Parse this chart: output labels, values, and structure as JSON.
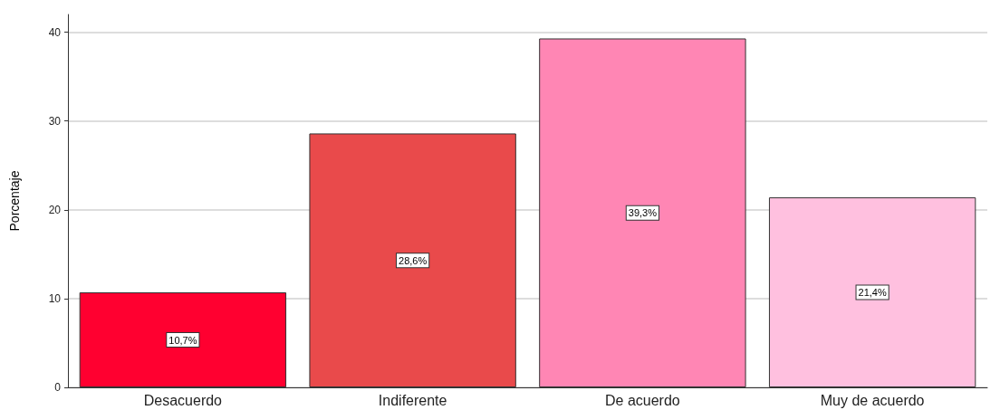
{
  "chart_data": {
    "type": "bar",
    "ylabel": "Porcentaje",
    "categories": [
      "Desacuerdo",
      "Indiferente",
      "De acuerdo",
      "Muy de acuerdo"
    ],
    "values": [
      10.7,
      28.6,
      39.3,
      21.4
    ],
    "colors": [
      "#ff0030",
      "#e94a4b",
      "#ff86b4",
      "#ffc0df"
    ],
    "value_labels": [
      "10,7%",
      "28,6%",
      "39,3%",
      "21,4%"
    ],
    "ylim": [
      0,
      42
    ],
    "yticks": [
      0,
      10,
      20,
      30,
      40
    ],
    "grid": "y"
  }
}
